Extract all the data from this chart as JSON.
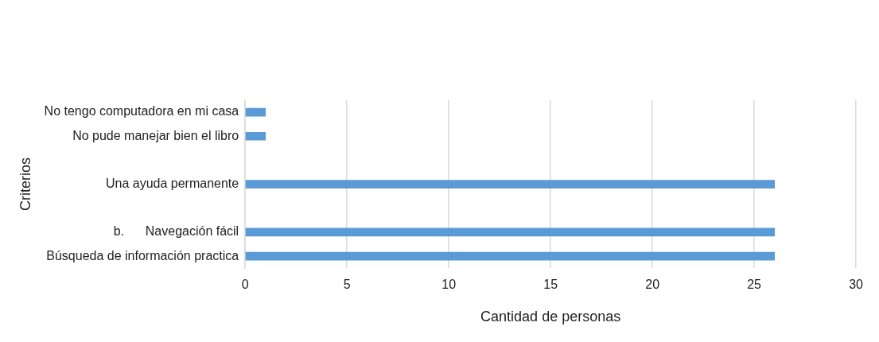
{
  "chart_data": {
    "type": "bar",
    "orientation": "horizontal",
    "xlabel": "Cantidad de personas",
    "ylabel": "Criterios",
    "categories": [
      "No tengo computadora en mi casa",
      "No pude manejar bien el libro",
      null,
      "Una ayuda permanente",
      null,
      "b.      Navegación fácil",
      "Búsqueda de información practica"
    ],
    "values": [
      1,
      1,
      null,
      26,
      null,
      26,
      26
    ],
    "color": "#5b9bd5",
    "xlim": [
      0,
      30
    ],
    "xticks": [
      0,
      5,
      10,
      15,
      20,
      25,
      30
    ],
    "grid": "x",
    "legend": false
  }
}
